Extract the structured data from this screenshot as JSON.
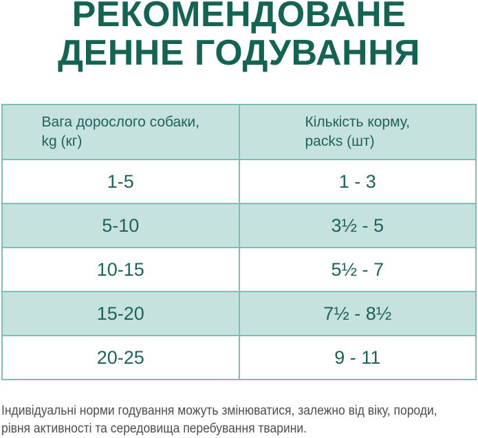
{
  "title": {
    "line1": "РЕКОМЕНДОВАНЕ",
    "line2": "ДЕННЕ ГОДУВАННЯ"
  },
  "table": {
    "columns": [
      {
        "line1": "Вага дорослого собаки,",
        "line2": "kg (кг)"
      },
      {
        "line1": "Кількість корму,",
        "line2": "packs (шт)"
      }
    ],
    "rows": [
      {
        "weight": "1-5",
        "packs": "1 - 3"
      },
      {
        "weight": "5-10",
        "packs": "3½ - 5"
      },
      {
        "weight": "10-15",
        "packs": "5½ - 7"
      },
      {
        "weight": "15-20",
        "packs": "7½ - 8½"
      },
      {
        "weight": "20-25",
        "packs": "9 - 11"
      }
    ]
  },
  "footnote": {
    "line1": "Індивідуальні норми годування можуть змінюватися, залежно від віку, породи,",
    "line2": "рівня активності та середовища перебування тварини."
  },
  "colors": {
    "title_text": "#156353",
    "table_text": "#1e625a",
    "cell_fill": "#c6e2df",
    "border": "#7ebcb5",
    "footnote_text": "#4d4d4d"
  }
}
